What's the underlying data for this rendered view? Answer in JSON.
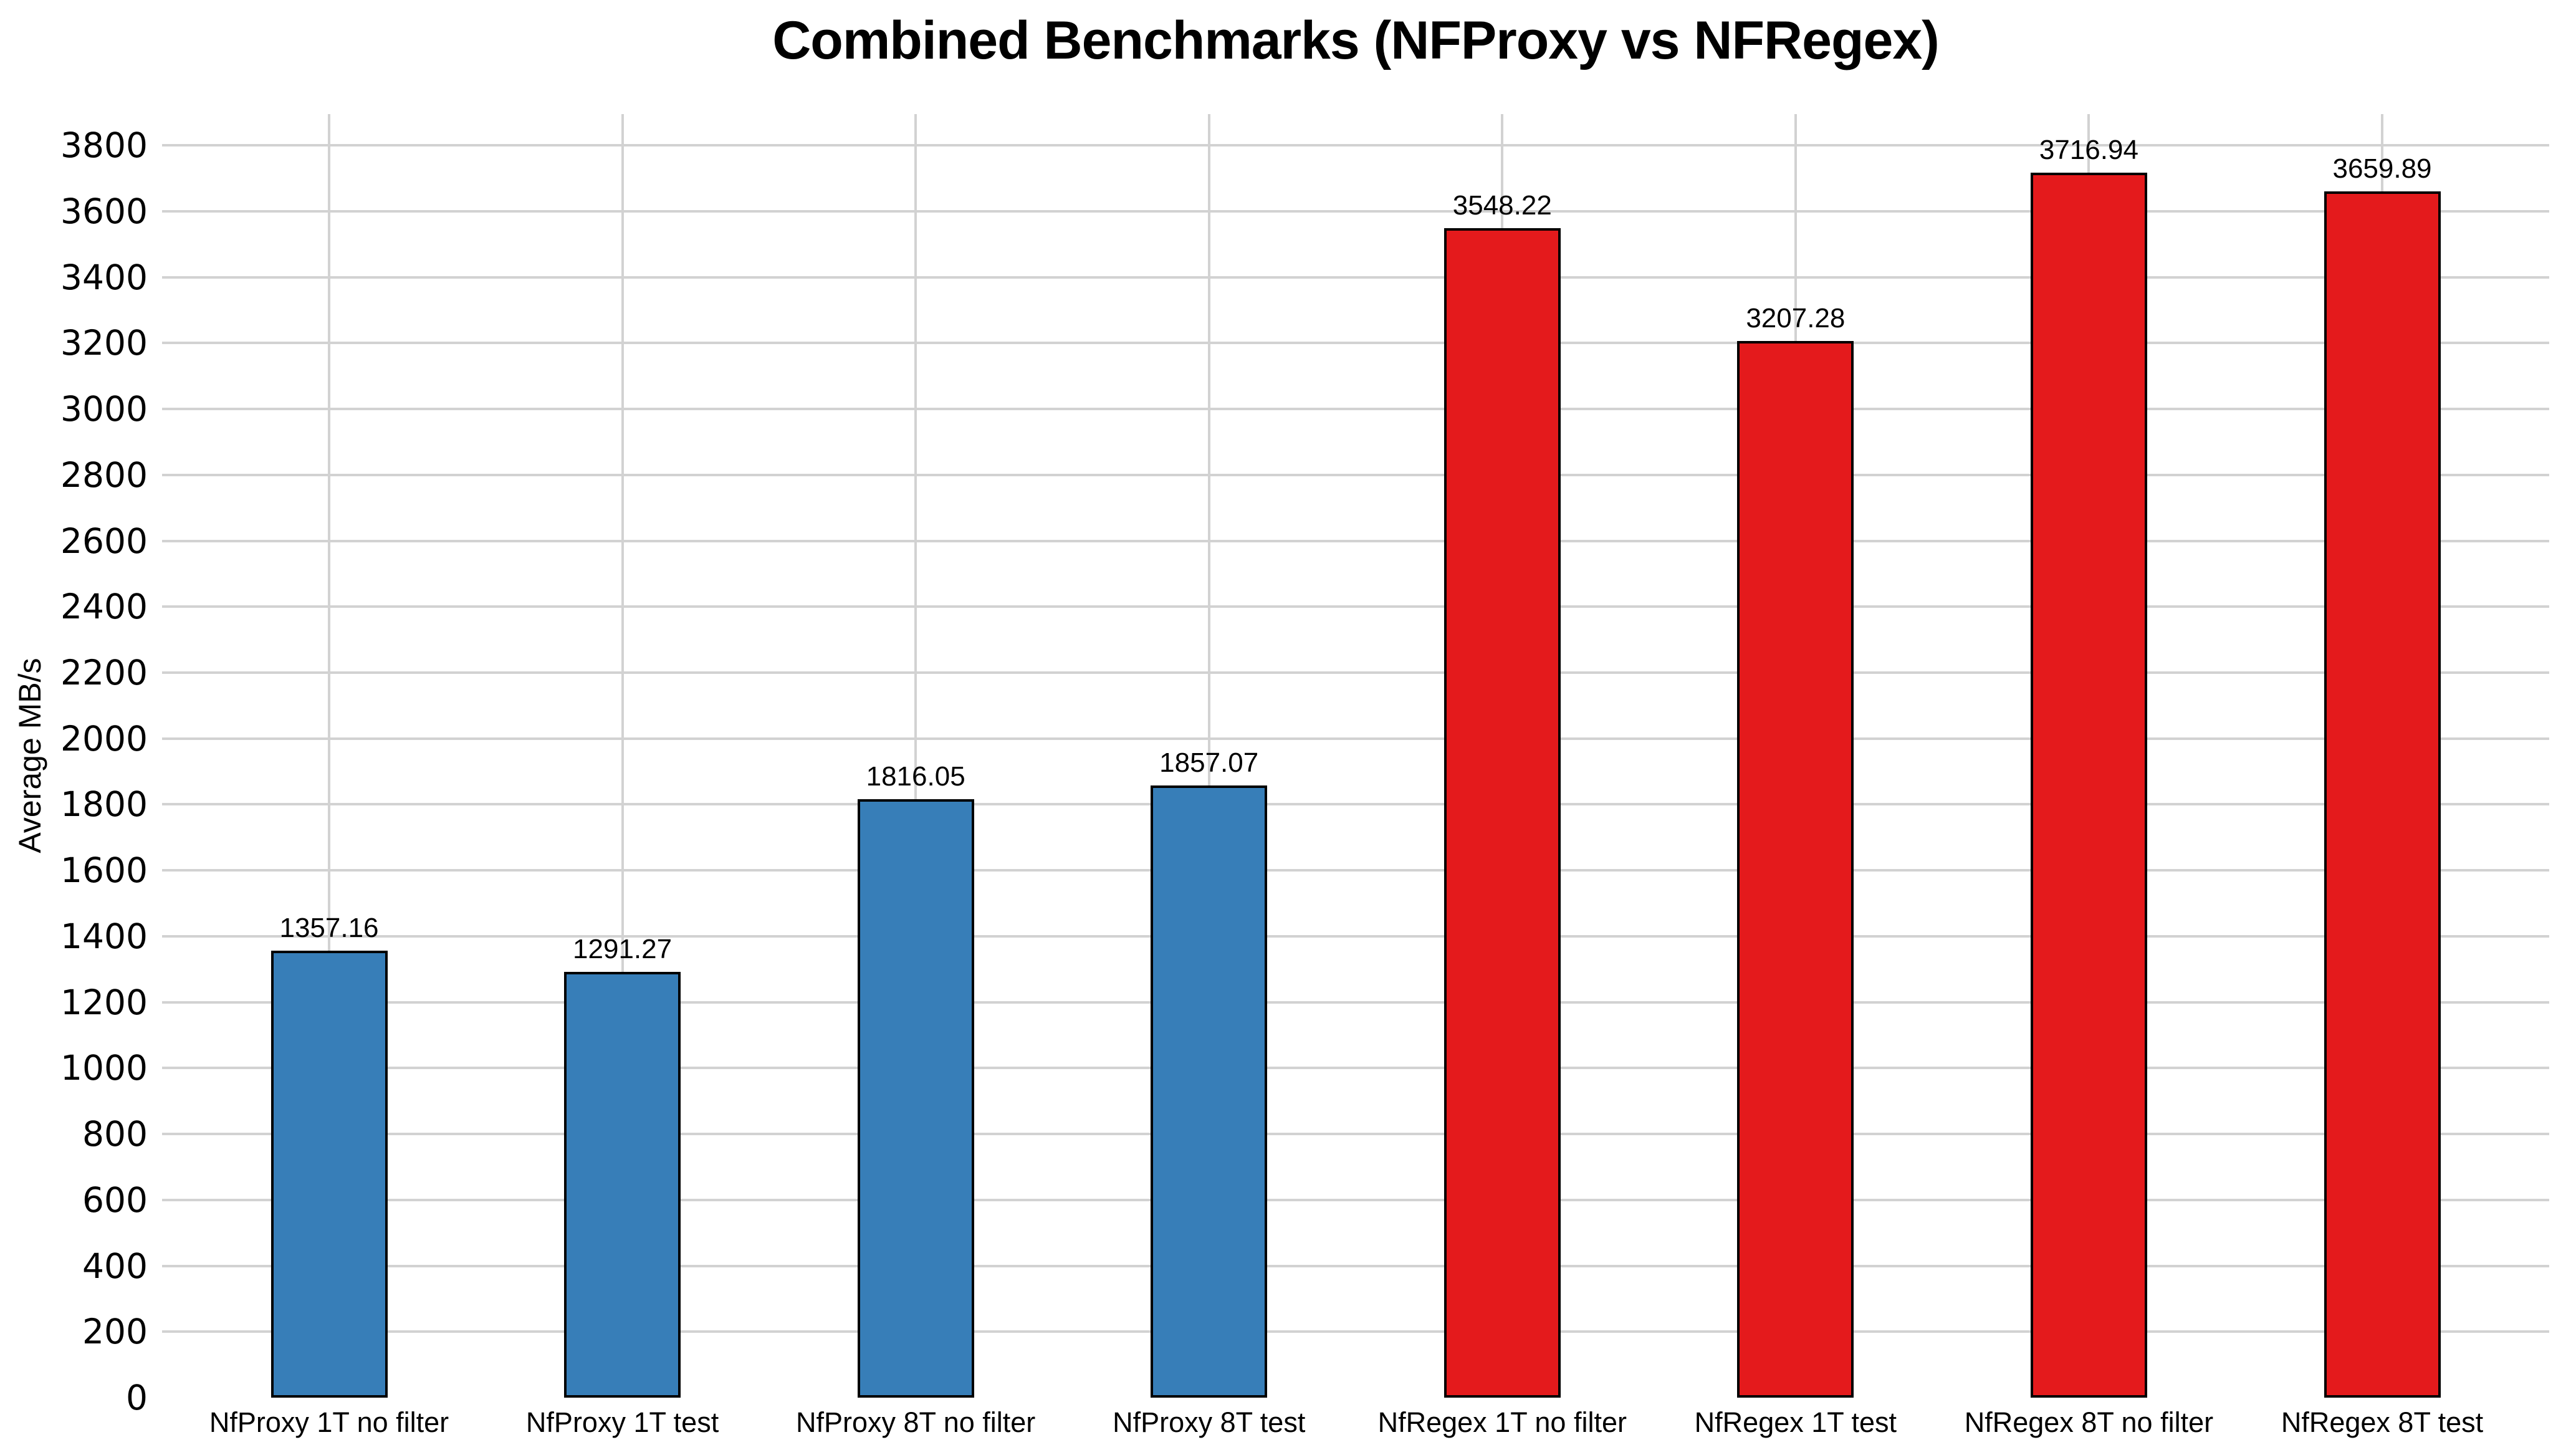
{
  "chart_data": {
    "type": "bar",
    "title": "Combined Benchmarks (NFProxy vs NFRegex)",
    "ylabel": "Average MB/s",
    "xlabel": "",
    "categories": [
      "NfProxy 1T no filter",
      "NfProxy 1T test",
      "NfProxy 8T no filter",
      "NfProxy 8T test",
      "NfRegex 1T no filter",
      "NfRegex 1T test",
      "NfRegex 8T no filter",
      "NfRegex 8T test"
    ],
    "values": [
      1357.16,
      1291.27,
      1816.05,
      1857.07,
      3548.22,
      3207.28,
      3716.94,
      3659.89
    ],
    "value_labels": [
      "1357.16",
      "1291.27",
      "1816.05",
      "1857.07",
      "3548.22",
      "3207.28",
      "3716.94",
      "3659.89"
    ],
    "bar_colors": [
      "#377eb8",
      "#377eb8",
      "#377eb8",
      "#377eb8",
      "#e41a1c",
      "#e41a1c",
      "#e41a1c",
      "#e41a1c"
    ],
    "colors": {
      "nfproxy_blue": "#377eb8",
      "nfregex_red": "#e41a1c",
      "bar_edge": "#000000",
      "grid": "#d2d2d2",
      "text": "#000000",
      "background": "#ffffff"
    },
    "ylim": [
      0,
      3895
    ],
    "yticks": [
      0,
      200,
      400,
      600,
      800,
      1000,
      1200,
      1400,
      1600,
      1800,
      2000,
      2200,
      2400,
      2600,
      2800,
      3000,
      3200,
      3400,
      3600,
      3800
    ],
    "grid": true,
    "legend_position": "none"
  }
}
